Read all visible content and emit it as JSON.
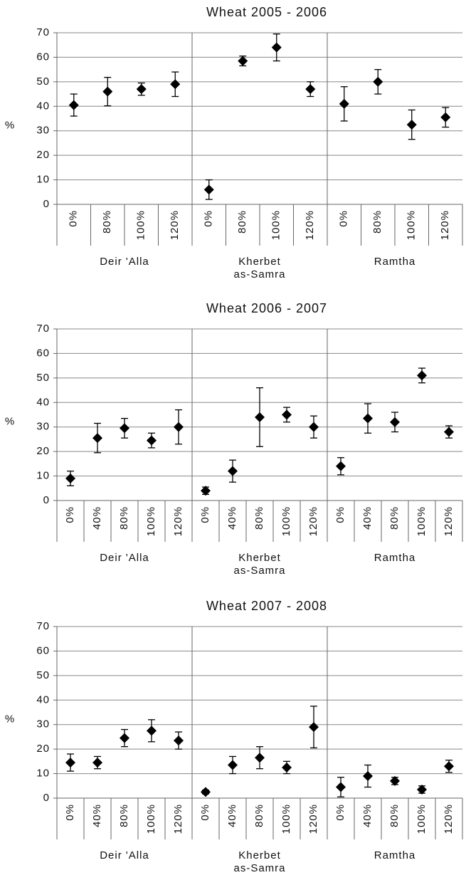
{
  "chart_data": [
    {
      "type": "errorbar",
      "title": "Wheat 2005 - 2006",
      "y_label": "%",
      "ylim": [
        0,
        70
      ],
      "yticks": [
        0,
        10,
        20,
        30,
        40,
        50,
        60,
        70
      ],
      "grid": true,
      "color": "#000000",
      "groups": [
        {
          "name": "Deir 'Alla",
          "categories": [
            "0%",
            "80%",
            "100%",
            "120%"
          ],
          "values": [
            40.5,
            46,
            47,
            49
          ],
          "errors": [
            4.5,
            5.8,
            2.5,
            5
          ]
        },
        {
          "name": "Kherbet\nas-Samra",
          "categories": [
            "0%",
            "80%",
            "100%",
            "120%"
          ],
          "values": [
            6,
            58.5,
            64,
            47
          ],
          "errors": [
            4,
            2,
            5.5,
            3
          ]
        },
        {
          "name": "Ramtha",
          "categories": [
            "0%",
            "80%",
            "100%",
            "120%"
          ],
          "values": [
            41,
            50,
            32.5,
            35.5
          ],
          "errors": [
            7,
            5,
            6,
            4
          ]
        }
      ]
    },
    {
      "type": "errorbar",
      "title": "Wheat 2006 - 2007",
      "y_label": "%",
      "ylim": [
        0,
        70
      ],
      "yticks": [
        0,
        10,
        20,
        30,
        40,
        50,
        60,
        70
      ],
      "grid": true,
      "color": "#000000",
      "groups": [
        {
          "name": "Deir 'Alla",
          "categories": [
            "0%",
            "40%",
            "80%",
            "100%",
            "120%"
          ],
          "values": [
            9,
            25.5,
            29.5,
            24.5,
            30
          ],
          "errors": [
            3,
            6,
            4,
            3,
            7
          ]
        },
        {
          "name": "Kherbet\nas-Samra",
          "categories": [
            "0%",
            "40%",
            "80%",
            "100%",
            "120%"
          ],
          "values": [
            4,
            12,
            34,
            35,
            30
          ],
          "errors": [
            1.5,
            4.5,
            12,
            3,
            4.5
          ]
        },
        {
          "name": "Ramtha",
          "categories": [
            "0%",
            "40%",
            "80%",
            "100%",
            "120%"
          ],
          "values": [
            14,
            33.5,
            32,
            51,
            28
          ],
          "errors": [
            3.5,
            6,
            4,
            3,
            2.5
          ]
        }
      ]
    },
    {
      "type": "errorbar",
      "title": "Wheat 2007 - 2008",
      "y_label": "%",
      "ylim": [
        0,
        70
      ],
      "yticks": [
        0,
        10,
        20,
        30,
        40,
        50,
        60,
        70
      ],
      "grid": true,
      "color": "#000000",
      "groups": [
        {
          "name": "Deir 'Alla",
          "categories": [
            "0%",
            "40%",
            "80%",
            "100%",
            "120%"
          ],
          "values": [
            14.5,
            14.5,
            24.5,
            27.5,
            23.5
          ],
          "errors": [
            3.5,
            2.5,
            3.5,
            4.5,
            3.5
          ]
        },
        {
          "name": "Kherbet\nas-Samra",
          "categories": [
            "0%",
            "40%",
            "80%",
            "100%",
            "120%"
          ],
          "values": [
            2.5,
            13.5,
            16.5,
            12.5,
            29
          ],
          "errors": [
            0.8,
            3.5,
            4.5,
            2.5,
            8.5
          ]
        },
        {
          "name": "Ramtha",
          "categories": [
            "0%",
            "40%",
            "80%",
            "100%",
            "120%"
          ],
          "values": [
            4.5,
            9,
            7,
            3.5,
            13
          ],
          "errors": [
            4,
            4.5,
            1.5,
            1.5,
            2.5
          ]
        }
      ]
    }
  ]
}
